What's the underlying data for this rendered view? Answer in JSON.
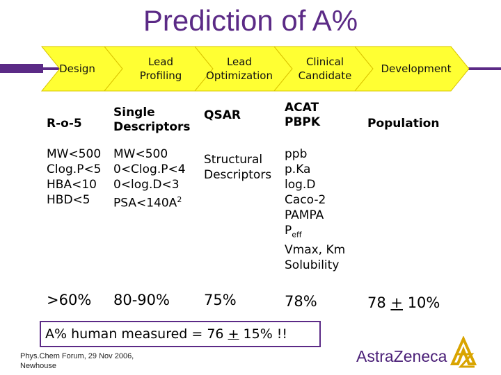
{
  "title": "Prediction of A%",
  "pipeline": {
    "stages": [
      {
        "lines": [
          "Design"
        ]
      },
      {
        "lines": [
          "Lead",
          "Profiling"
        ]
      },
      {
        "lines": [
          "Lead",
          "Optimization"
        ]
      },
      {
        "lines": [
          "Clinical",
          "Candidate"
        ]
      },
      {
        "lines": [
          "Development"
        ]
      }
    ],
    "fill_color": "#ffff33",
    "line_color": "#5b2a86"
  },
  "columns": [
    {
      "header": [
        "R-o-5"
      ],
      "items": [
        "MW<500",
        "Clog.P<5",
        "HBA<10",
        "HBD<5"
      ],
      "percent": ">60%"
    },
    {
      "header": [
        "Single",
        "Descriptors"
      ],
      "items": [
        "MW<500",
        "0<Clog.P<4",
        "0<log.D<3",
        "PSA<140A",
        "2"
      ],
      "percent": "80-90%"
    },
    {
      "header": [
        "QSAR"
      ],
      "items": [
        "Structural",
        "Descriptors"
      ],
      "percent": "75%"
    },
    {
      "header": [
        "ACAT",
        "PBPK"
      ],
      "items": [
        "ppb",
        "p.Ka",
        "log.D",
        "Caco-2",
        "PAMPA",
        "P",
        "eff",
        "Vmax, Km",
        "Solubility"
      ],
      "percent": "78%"
    },
    {
      "header": [
        "Population"
      ],
      "items": [],
      "percent_a": "78 ",
      "percent_pm": "+",
      "percent_b": " 10%"
    }
  ],
  "summary": {
    "a": "A% human measured = 76 ",
    "pm": "+",
    "b": " 15% !!"
  },
  "footer": {
    "line1": "Phys.Chem Forum, 29 Nov 2006,",
    "line2": "Newhouse"
  },
  "logo": {
    "text": "AstraZeneca"
  }
}
